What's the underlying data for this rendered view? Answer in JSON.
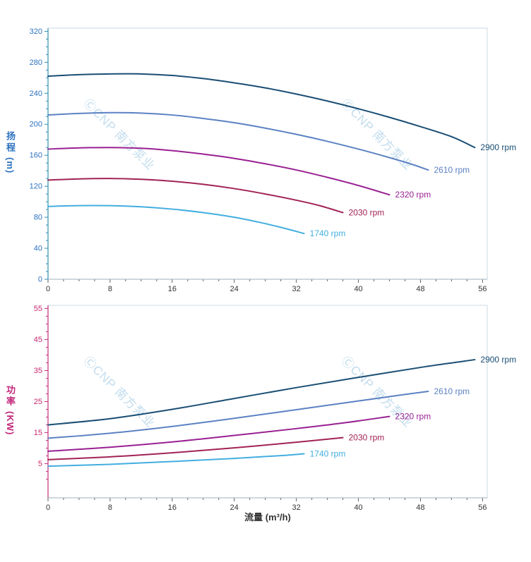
{
  "watermark": {
    "text": "ⒸCNP 南方泵业",
    "color": "#bcd9ec"
  },
  "chart_data": [
    {
      "name": "head",
      "type": "line",
      "title": "",
      "ylabel": "扬程",
      "ylabel_unit": "(m)",
      "xlabel": "",
      "xlim": [
        0,
        56.6
      ],
      "ylim": [
        0,
        324
      ],
      "xticks": {
        "start": 0,
        "end": 56,
        "minor_step": 2,
        "labels": [
          0,
          8,
          16,
          24,
          32,
          40,
          48,
          56
        ]
      },
      "yticks": {
        "start": 0,
        "end": 320,
        "minor_step": 10,
        "labels": [
          0,
          40,
          80,
          120,
          160,
          200,
          240,
          280,
          320
        ]
      },
      "frame_color": "#ccd8df",
      "axis_color": "#2e8fb0",
      "xaxis_color": "#9fb0ba",
      "xaxis_tick_color": "#55606a",
      "xtick_label_color": "#333333",
      "ytick_label_color": "#2d72c0",
      "series": [
        {
          "name": "2900 rpm",
          "color": "#1a4e74",
          "points": [
            [
              0,
              262
            ],
            [
              4,
              264
            ],
            [
              8,
              265
            ],
            [
              12,
              265
            ],
            [
              16,
              263
            ],
            [
              20,
              259
            ],
            [
              24,
              253.5
            ],
            [
              28,
              247
            ],
            [
              32,
              239
            ],
            [
              36,
              230
            ],
            [
              40,
              220
            ],
            [
              44,
              209
            ],
            [
              48,
              197
            ],
            [
              52,
              184
            ],
            [
              55,
              170
            ]
          ]
        },
        {
          "name": "2610 rpm",
          "color": "#5c82c4",
          "points": [
            [
              0,
              212
            ],
            [
              4,
              214
            ],
            [
              8,
              215
            ],
            [
              12,
              214.5
            ],
            [
              16,
              212
            ],
            [
              20,
              207.5
            ],
            [
              24,
              202
            ],
            [
              28,
              195
            ],
            [
              32,
              187
            ],
            [
              36,
              178
            ],
            [
              40,
              168
            ],
            [
              44,
              157
            ],
            [
              47,
              148
            ],
            [
              49,
              141
            ]
          ]
        },
        {
          "name": "2320 rpm",
          "color": "#992092",
          "points": [
            [
              0,
              168
            ],
            [
              4,
              169.5
            ],
            [
              8,
              170
            ],
            [
              12,
              169
            ],
            [
              16,
              166
            ],
            [
              20,
              161.5
            ],
            [
              24,
              156
            ],
            [
              28,
              149
            ],
            [
              32,
              141
            ],
            [
              36,
              131.5
            ],
            [
              40,
              121
            ],
            [
              44,
              109
            ]
          ]
        },
        {
          "name": "2030 rpm",
          "color": "#a22355",
          "points": [
            [
              0,
              128
            ],
            [
              4,
              129.5
            ],
            [
              8,
              130
            ],
            [
              12,
              129
            ],
            [
              16,
              126.5
            ],
            [
              20,
              122.5
            ],
            [
              24,
              117
            ],
            [
              28,
              110
            ],
            [
              32,
              102
            ],
            [
              35,
              95
            ],
            [
              38,
              86
            ]
          ]
        },
        {
          "name": "1740 rpm",
          "color": "#43aee0",
          "points": [
            [
              0,
              94
            ],
            [
              4,
              95
            ],
            [
              8,
              95
            ],
            [
              12,
              93.5
            ],
            [
              16,
              90.5
            ],
            [
              20,
              86
            ],
            [
              24,
              80
            ],
            [
              27,
              74
            ],
            [
              30,
              67
            ],
            [
              33,
              59
            ]
          ]
        }
      ]
    },
    {
      "name": "power",
      "type": "line",
      "title": "",
      "ylabel": "功率",
      "ylabel_unit": "(KW)",
      "xlabel": "流量 (m³/h)",
      "xlim": [
        0,
        56.6
      ],
      "ylim": [
        -6,
        56
      ],
      "xticks": {
        "start": 0,
        "end": 56,
        "minor_step": 2,
        "labels": [
          0,
          8,
          16,
          24,
          32,
          40,
          48,
          56
        ]
      },
      "yticks": {
        "start": 0,
        "end": 55,
        "minor_step": 2.5,
        "labels": [
          5,
          15,
          25,
          35,
          45,
          55
        ]
      },
      "frame_color": "#ccd8df",
      "axis_color": "#c2307c",
      "xaxis_color": "#9fb0ba",
      "xaxis_tick_color": "#55606a",
      "xtick_label_color": "#333333",
      "ytick_label_color": "#c8286e",
      "series": [
        {
          "name": "2900 rpm",
          "color": "#1a4e74",
          "points": [
            [
              0,
              17.5
            ],
            [
              8,
              19.5
            ],
            [
              16,
              22.5
            ],
            [
              24,
              26
            ],
            [
              32,
              29.5
            ],
            [
              40,
              32.8
            ],
            [
              48,
              36
            ],
            [
              55,
              38.5
            ]
          ]
        },
        {
          "name": "2610 rpm",
          "color": "#5c82c4",
          "points": [
            [
              0,
              13.2
            ],
            [
              8,
              14.8
            ],
            [
              16,
              17
            ],
            [
              24,
              19.6
            ],
            [
              32,
              22.4
            ],
            [
              40,
              25.2
            ],
            [
              46,
              27.3
            ],
            [
              49,
              28.3
            ]
          ]
        },
        {
          "name": "2320 rpm",
          "color": "#992092",
          "points": [
            [
              0,
              9
            ],
            [
              8,
              10.3
            ],
            [
              16,
              12
            ],
            [
              24,
              14.1
            ],
            [
              32,
              16.3
            ],
            [
              38,
              18.1
            ],
            [
              44,
              20.2
            ]
          ]
        },
        {
          "name": "2030 rpm",
          "color": "#a22355",
          "points": [
            [
              0,
              6.3
            ],
            [
              8,
              7.2
            ],
            [
              16,
              8.5
            ],
            [
              24,
              10.1
            ],
            [
              32,
              11.9
            ],
            [
              38,
              13.4
            ]
          ]
        },
        {
          "name": "1740 rpm",
          "color": "#43aee0",
          "points": [
            [
              0,
              4.2
            ],
            [
              8,
              4.8
            ],
            [
              16,
              5.7
            ],
            [
              24,
              6.7
            ],
            [
              30,
              7.6
            ],
            [
              33,
              8.2
            ]
          ]
        }
      ]
    }
  ]
}
